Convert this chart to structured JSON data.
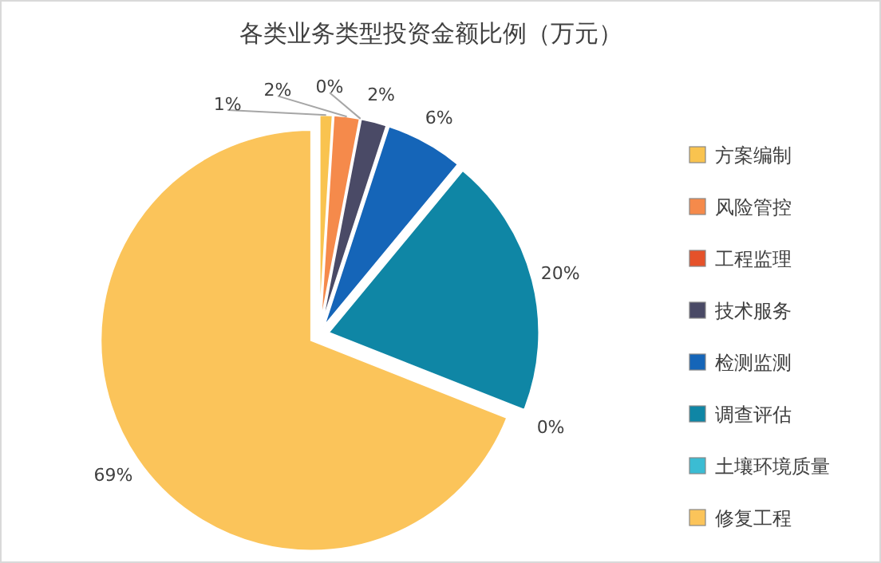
{
  "chart_data": {
    "type": "pie",
    "title": "各类业务类型投资金额比例（万元）",
    "categories": [
      "方案编制",
      "风险管控",
      "工程监理",
      "技术服务",
      "检测监测",
      "调查评估",
      "土壤环境质量",
      "修复工程"
    ],
    "values": [
      1,
      2,
      0,
      2,
      6,
      20,
      0,
      69
    ],
    "value_labels": [
      "1%",
      "2%",
      "0%",
      "2%",
      "6%",
      "20%",
      "0%",
      "69%"
    ],
    "colors": [
      "#f9c34f",
      "#f58a4b",
      "#e5522a",
      "#4a4a66",
      "#1565b8",
      "#0f86a5",
      "#3bbcd3",
      "#fbc45a"
    ],
    "legend": "right"
  }
}
